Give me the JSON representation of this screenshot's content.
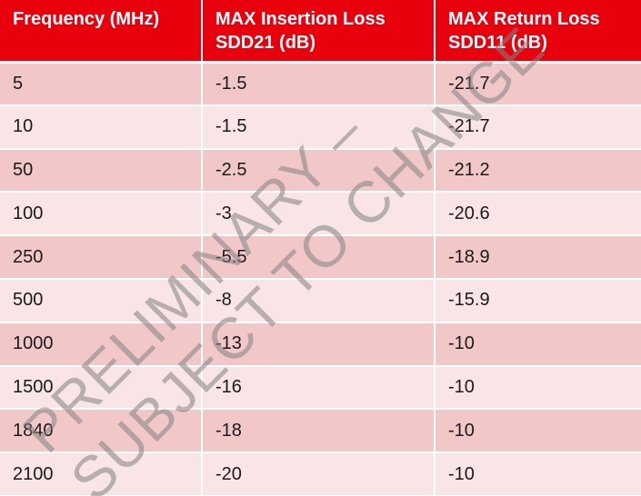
{
  "table": {
    "headers": [
      "Frequency (MHz)",
      "MAX Insertion Loss SDD21 (dB)",
      "MAX Return Loss SDD11 (dB)"
    ],
    "rows": [
      [
        "5",
        "-1.5",
        "-21.7"
      ],
      [
        "10",
        "-1.5",
        "-21.7"
      ],
      [
        "50",
        "-2.5",
        "-21.2"
      ],
      [
        "100",
        "-3",
        "-20.6"
      ],
      [
        "250",
        "-5.5",
        "-18.9"
      ],
      [
        "500",
        "-8",
        "-15.9"
      ],
      [
        "1000",
        "-13",
        "-10"
      ],
      [
        "1500",
        "-16",
        "-10"
      ],
      [
        "1840",
        "-18",
        "-10"
      ],
      [
        "2100",
        "-20",
        "-10"
      ]
    ]
  },
  "watermark": {
    "line1": "PRELIMINARY –",
    "line2": "SUBJECT TO CHANGE"
  }
}
